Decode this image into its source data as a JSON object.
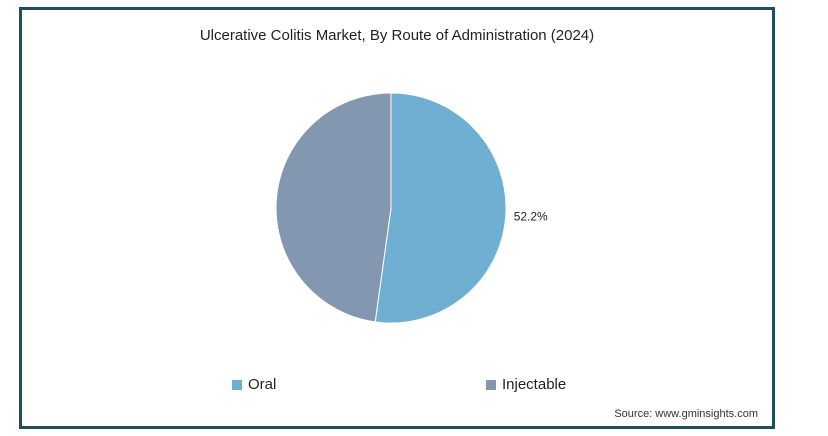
{
  "chart_data": {
    "type": "pie",
    "title": "Ulcerative Colitis Market, By Route of Administration (2024)",
    "series": [
      {
        "name": "Oral",
        "value": 52.2,
        "color": "#6eaed1",
        "label": "52.2%"
      },
      {
        "name": "Injectable",
        "value": 47.8,
        "color": "#8497b0",
        "label": ""
      }
    ],
    "legend_position": "bottom"
  },
  "source": "Source: www.gminsights.com"
}
